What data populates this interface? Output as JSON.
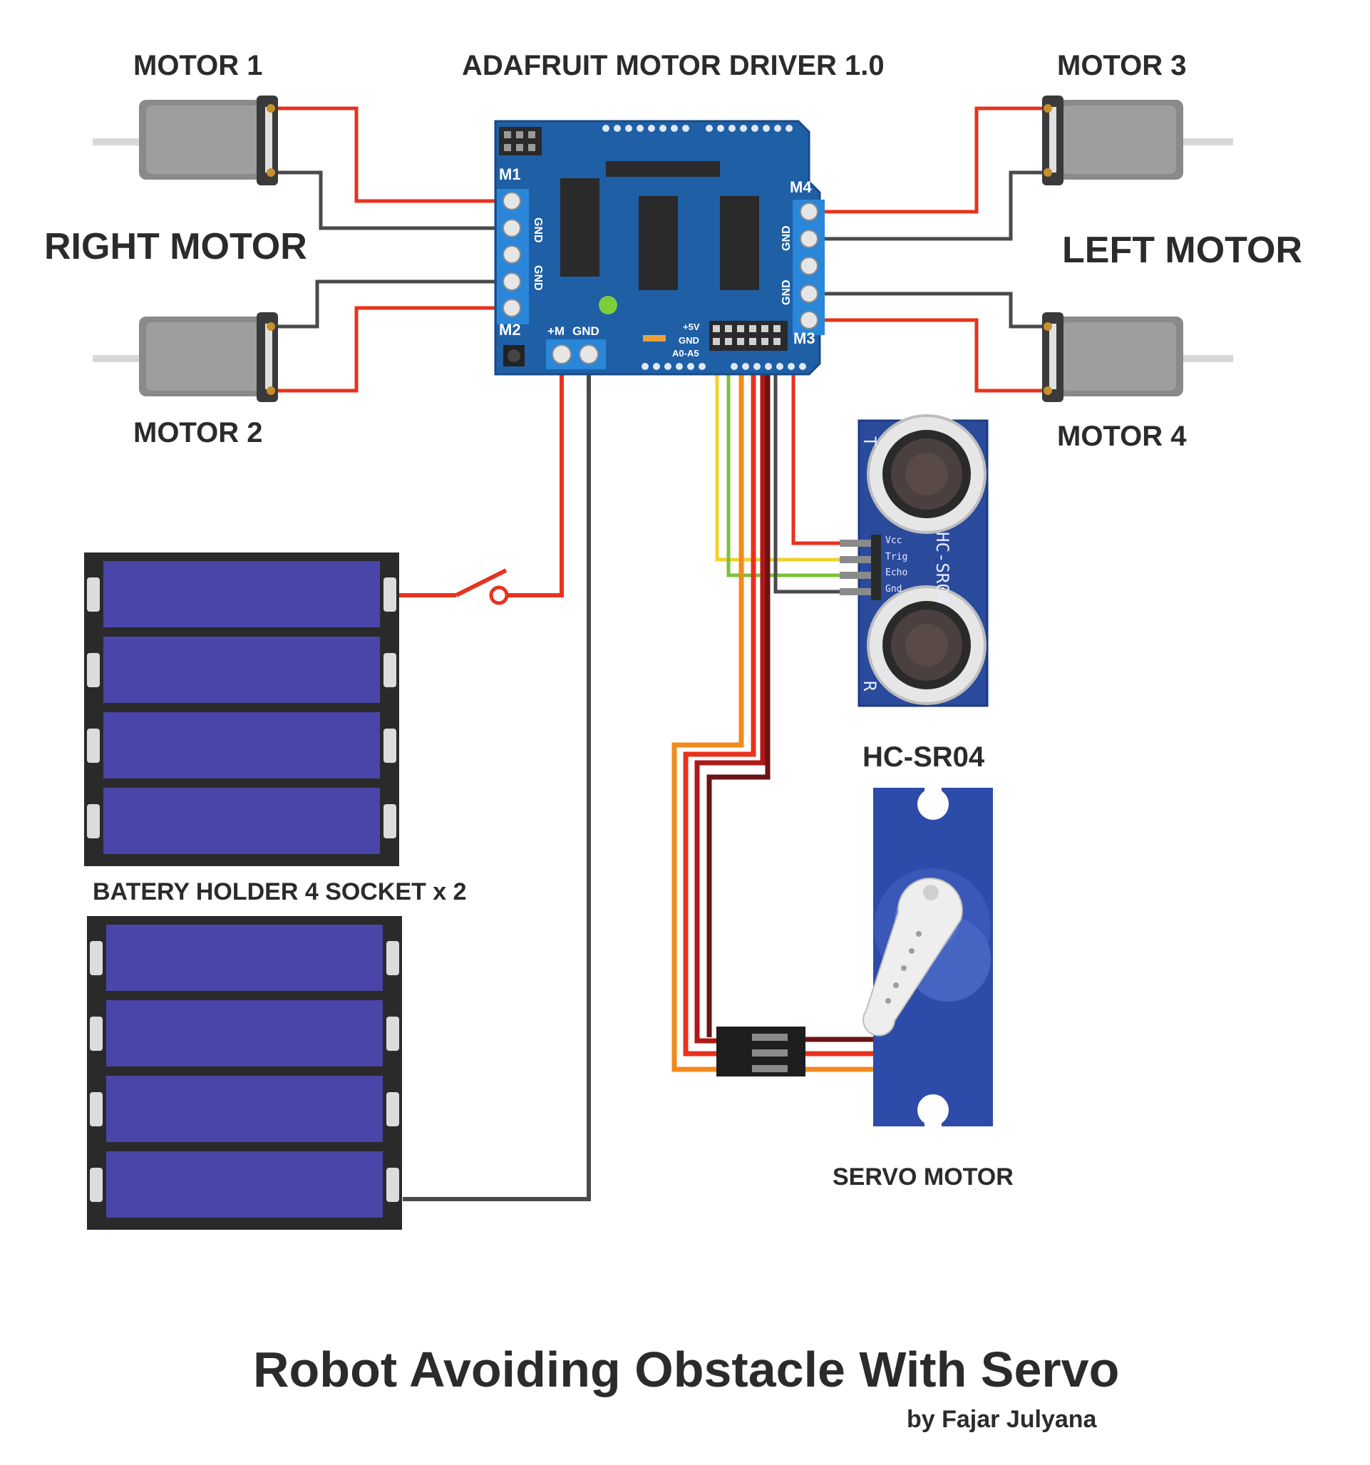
{
  "labels": {
    "motor1": "MOTOR 1",
    "motor2": "MOTOR 2",
    "motor3": "MOTOR 3",
    "motor4": "MOTOR 4",
    "right_motor": "RIGHT MOTOR",
    "left_motor": "LEFT MOTOR",
    "driver": "ADAFRUIT MOTOR DRIVER 1.0",
    "battery": "BATERY HOLDER 4 SOCKET x 2",
    "sensor_label": "HC-SR04",
    "servo_label": "SERVO MOTOR"
  },
  "board": {
    "m1": "M1",
    "m2": "M2",
    "m3": "M3",
    "m4": "M4",
    "gnd": "GND",
    "pwr_plus": "+M",
    "pwr_gnd": "GND",
    "pin_5v": "+5V",
    "pin_gnd": "GND",
    "pin_analog": "A0-A5"
  },
  "sensor": {
    "pins": [
      "Vcc",
      "Trig",
      "Echo",
      "Gnd"
    ],
    "model": "HC-SR04",
    "t": "T",
    "r": "R"
  },
  "footer": {
    "title": "Robot Avoiding Obstacle With Servo",
    "byline": "by Fajar Julyana"
  },
  "colors": {
    "wire_red": "#e8321e",
    "wire_black": "#4a4a4a",
    "wire_yellow": "#f0d22c",
    "wire_green": "#7cc13a",
    "wire_orange": "#f08a1c",
    "wire_darkred": "#6a1414",
    "board_blue": "#1f5fa6",
    "battery_blue": "#4a45a8",
    "sensor_blue": "#2a4a9c",
    "servo_blue": "#2d4ba8"
  }
}
